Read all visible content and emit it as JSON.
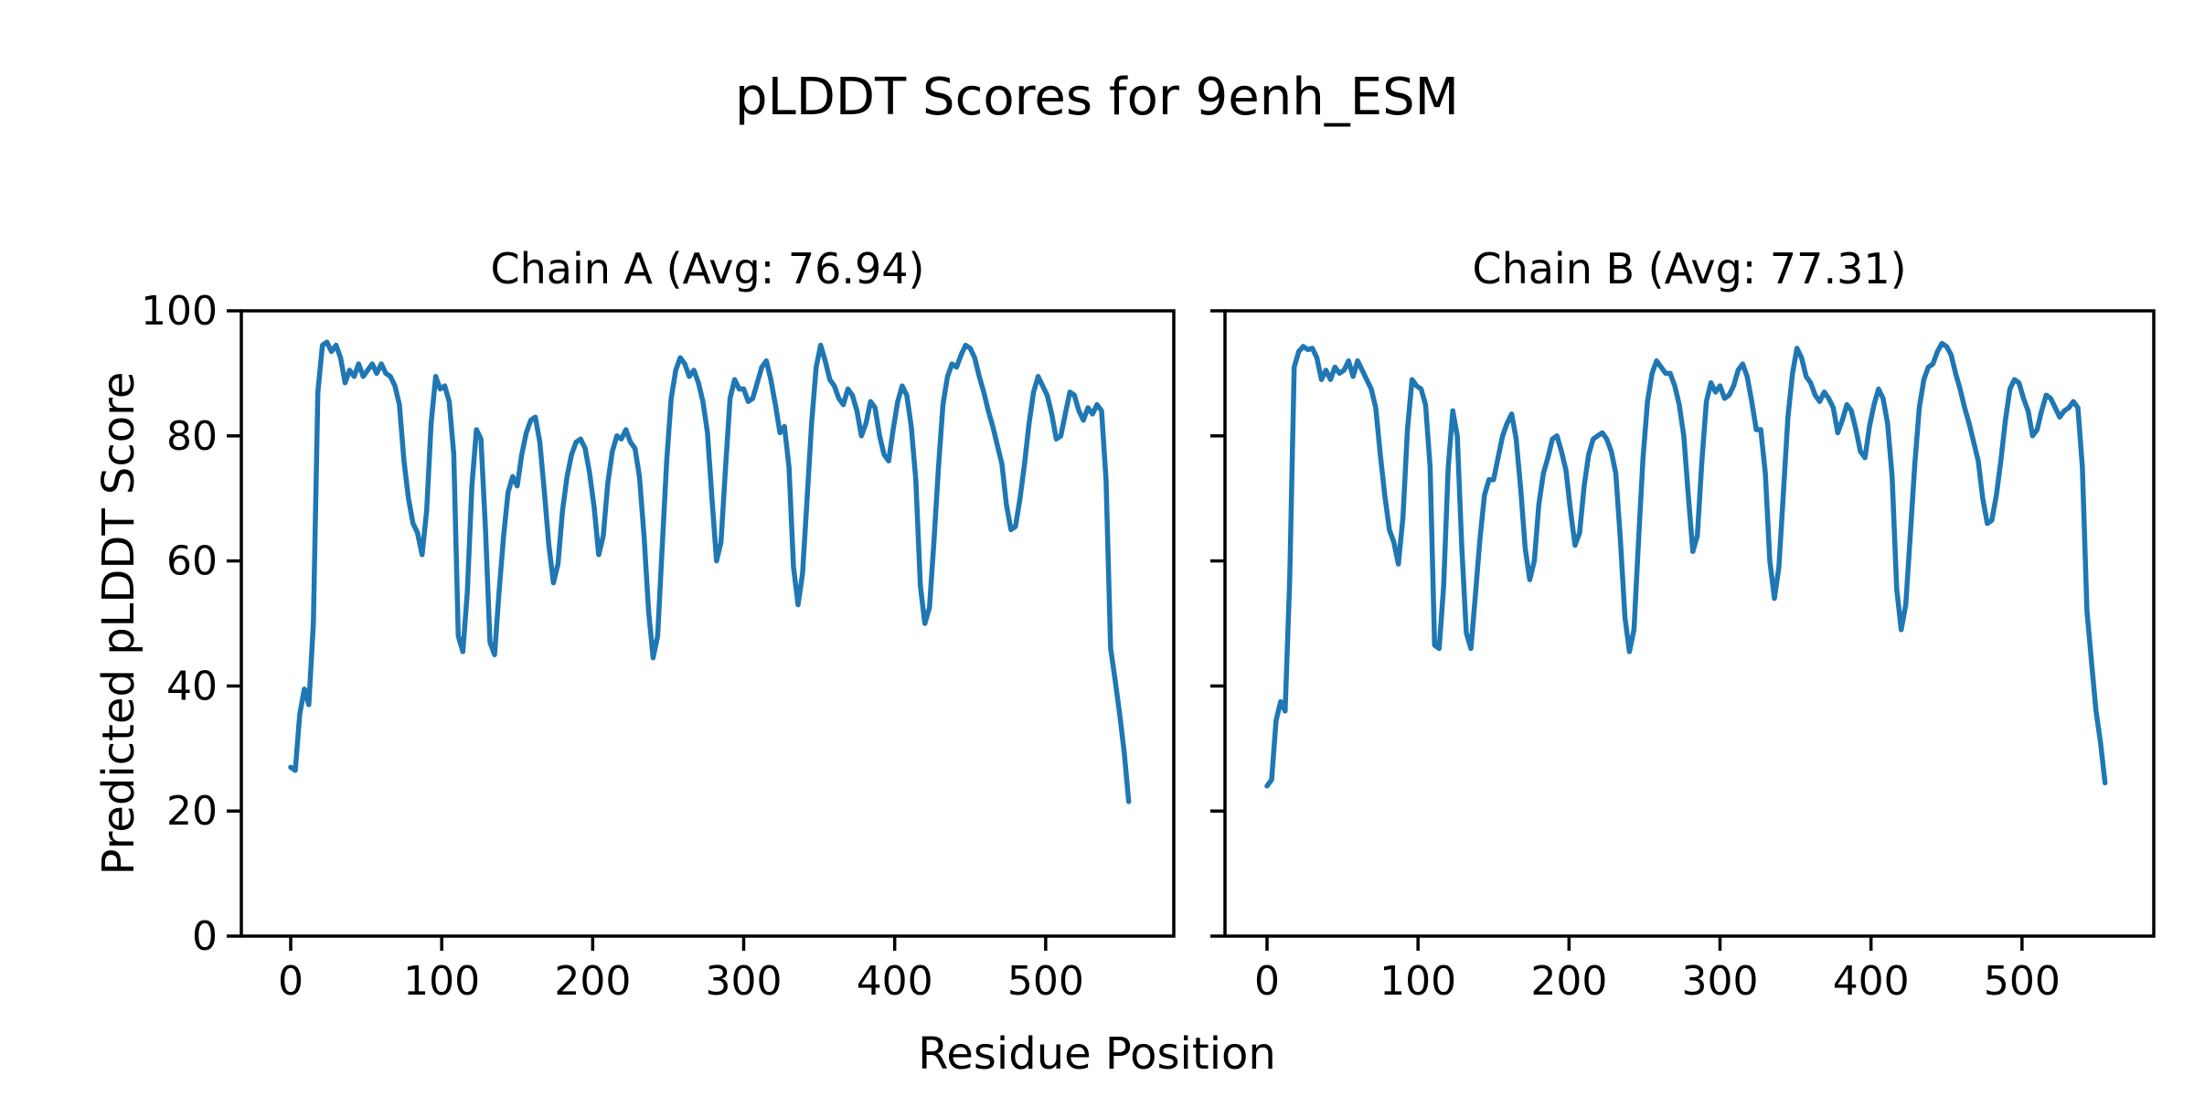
{
  "figure": {
    "title": "pLDDT Scores for 9enh_ESM",
    "xlabel": "Residue Position",
    "ylabel": "Predicted pLDDT Score",
    "background_color": "#ffffff",
    "text_color": "#000000"
  },
  "chart_data": [
    {
      "type": "line",
      "name": "Chain A",
      "title": "Chain A (Avg: 76.94)",
      "avg": 76.94,
      "line_color": "#1f77b4",
      "xlabel": "Residue Position",
      "ylabel": "Predicted pLDDT Score",
      "xlim": [
        -29,
        586
      ],
      "ylim": [
        0,
        100
      ],
      "xticks": [
        0,
        100,
        200,
        300,
        400,
        500
      ],
      "yticks": [
        0,
        20,
        40,
        60,
        80,
        100
      ],
      "show_ytick_labels": true,
      "grid": false,
      "legend": "none",
      "x_start": 0,
      "x_step": 3,
      "y": [
        27,
        26.5,
        35.5,
        39.5,
        37,
        50,
        87,
        94.5,
        95,
        93.5,
        94.5,
        92.5,
        88.5,
        90.5,
        89.5,
        91.5,
        89.5,
        90.5,
        91.5,
        90,
        91.5,
        90,
        89.5,
        88,
        85,
        76,
        70,
        66,
        64.5,
        61,
        68,
        82,
        89.5,
        87.5,
        88,
        85.5,
        77,
        48,
        45.5,
        55,
        72,
        81,
        79.5,
        65,
        47,
        45,
        55,
        64,
        71,
        73.5,
        72,
        77,
        80.5,
        82.5,
        83,
        79,
        71,
        62.5,
        56.5,
        59.5,
        68,
        73.5,
        77,
        79,
        79.5,
        78,
        74,
        68.5,
        61,
        64,
        72.5,
        77.5,
        80,
        79.5,
        81,
        79,
        78,
        73.5,
        64,
        52,
        44.5,
        48,
        62,
        76,
        86,
        90.5,
        92.5,
        91.5,
        89.5,
        90.5,
        88.5,
        85.5,
        80.5,
        70,
        60,
        63,
        75,
        86,
        89,
        87.5,
        87.5,
        85.5,
        86,
        88.5,
        91,
        92,
        89,
        85,
        80.5,
        81.5,
        75,
        59,
        53,
        58,
        70,
        82,
        91,
        94.5,
        92,
        89,
        88,
        86,
        85,
        87.5,
        86.5,
        84,
        80,
        82,
        85.5,
        84.5,
        80,
        77,
        76,
        81,
        85.5,
        88,
        86.5,
        81.5,
        73,
        56,
        50,
        52.5,
        63,
        75,
        85,
        89.5,
        91.5,
        91,
        93,
        94.5,
        94,
        92.5,
        89.5,
        87,
        84,
        81.5,
        78.5,
        75.5,
        69,
        65,
        65.5,
        70,
        75.5,
        82,
        87,
        89.5,
        88,
        86.5,
        83.5,
        79.5,
        80,
        83.5,
        87,
        86.5,
        84,
        82.5,
        84.5,
        83.5,
        85,
        84,
        73,
        46,
        41,
        35.5,
        29.5,
        21.5
      ]
    },
    {
      "type": "line",
      "name": "Chain B",
      "title": "Chain B (Avg: 77.31)",
      "avg": 77.31,
      "line_color": "#1f77b4",
      "xlabel": "Residue Position",
      "ylabel": "Predicted pLDDT Score",
      "xlim": [
        -29,
        586
      ],
      "ylim": [
        0,
        100
      ],
      "xticks": [
        0,
        100,
        200,
        300,
        400,
        500
      ],
      "yticks": [
        0,
        20,
        40,
        60,
        80,
        100
      ],
      "show_ytick_labels": false,
      "grid": false,
      "legend": "none",
      "x_start": 0,
      "x_step": 3,
      "y": [
        24,
        25,
        34.5,
        37.5,
        36,
        57,
        91,
        93.5,
        94.3,
        93.8,
        94,
        92.5,
        89,
        90.5,
        89,
        91,
        90,
        90.5,
        92,
        89.5,
        92,
        90.5,
        89,
        87.5,
        84.5,
        77,
        70.5,
        65,
        63,
        59.5,
        67,
        81,
        89,
        88,
        87.5,
        85,
        75,
        46.5,
        46,
        56,
        75,
        84,
        80,
        62,
        48.5,
        46,
        54.5,
        63.5,
        70.5,
        73,
        73,
        76.5,
        80,
        82,
        83.5,
        79.5,
        71.5,
        62,
        57,
        60,
        69,
        74,
        76.5,
        79.5,
        80,
        77.5,
        74.5,
        68,
        62.5,
        64.5,
        72,
        77,
        79.5,
        80,
        80.5,
        79.5,
        77.5,
        74,
        63.5,
        51,
        45.5,
        49,
        63,
        76.5,
        85.5,
        90,
        92,
        91,
        90,
        90,
        88,
        85,
        80,
        70.5,
        61.5,
        64,
        76,
        85.5,
        88.5,
        87,
        88,
        86,
        86.5,
        88,
        90.5,
        91.5,
        89.5,
        85.5,
        81,
        81,
        74,
        60,
        54,
        59,
        71,
        83,
        90,
        94,
        92.5,
        89.5,
        88.5,
        86.5,
        85.5,
        87,
        86,
        84.5,
        80.5,
        82.5,
        85,
        84,
        81,
        77.5,
        76.5,
        81.5,
        85,
        87.5,
        86,
        82,
        73.5,
        55.5,
        49,
        53,
        64,
        75.5,
        84.5,
        89,
        91,
        91.5,
        93.5,
        94.8,
        94.3,
        93,
        90,
        87.5,
        84.5,
        82,
        79,
        76,
        70,
        66,
        66.5,
        70.5,
        76,
        82.5,
        87.5,
        89,
        88.5,
        86,
        84,
        80,
        81,
        84,
        86.5,
        86,
        84.5,
        83,
        84,
        84.5,
        85.5,
        84.5,
        75,
        52,
        44,
        36,
        31,
        24.5
      ]
    }
  ],
  "axis_style": {
    "spine_color": "#000000",
    "tick_color": "#000000",
    "tick_label_fontsize_px": 44
  }
}
